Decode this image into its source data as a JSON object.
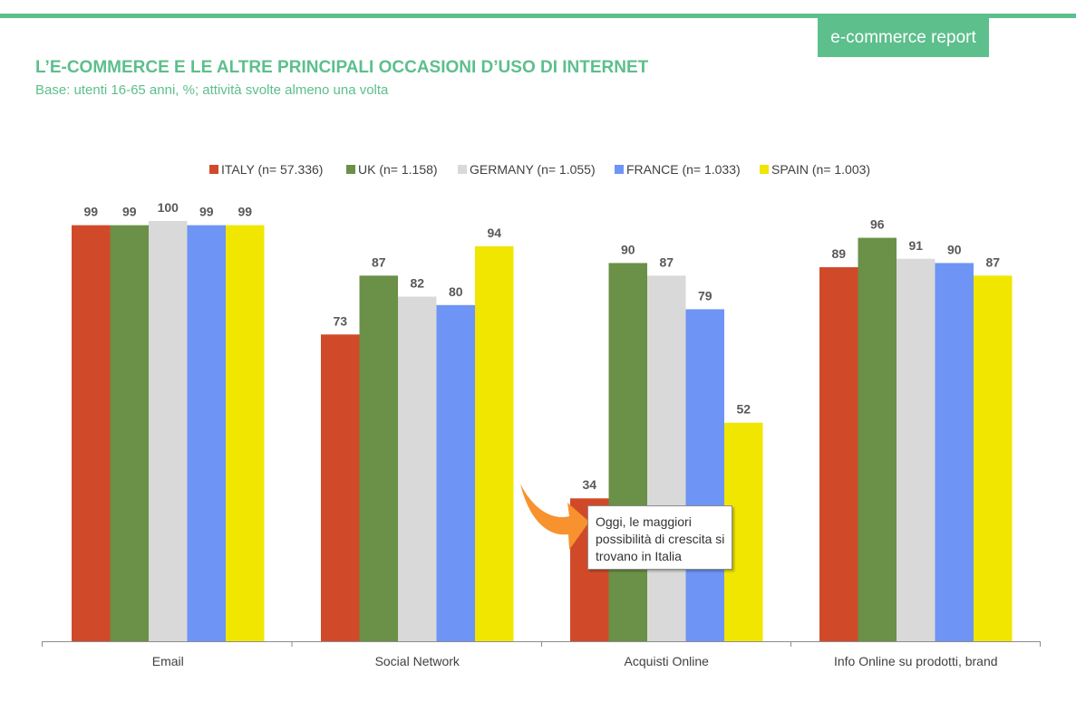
{
  "header": {
    "badge": "e-commerce report",
    "title": "L’E-COMMERCE E LE ALTRE PRINCIPALI OCCASIONI D’USO DI INTERNET",
    "subtitle": "Base: utenti 16-65 anni, %; attività svolte almeno una volta"
  },
  "colors": {
    "brand": "#5cbf8c",
    "arrow": "#f7922e"
  },
  "callout": {
    "text": "Oggi, le maggiori possibilità di crescita si trovano in Italia",
    "arrow_icon": "curved-arrow-icon"
  },
  "chart_data": {
    "type": "bar",
    "categories": [
      "Email",
      "Social Network",
      "Acquisti Online",
      "Info Online su prodotti, brand"
    ],
    "series": [
      {
        "name": "ITALY (n= 57.336)",
        "color": "#d04a2a",
        "values": [
          99,
          73,
          34,
          89
        ]
      },
      {
        "name": "UK (n= 1.158)",
        "color": "#6a9147",
        "values": [
          99,
          87,
          90,
          96
        ]
      },
      {
        "name": "GERMANY (n= 1.055)",
        "color": "#d9d9d9",
        "values": [
          100,
          82,
          87,
          91
        ]
      },
      {
        "name": "FRANCE (n= 1.033)",
        "color": "#6e94f5",
        "values": [
          99,
          80,
          79,
          90
        ]
      },
      {
        "name": "SPAIN (n= 1.003)",
        "color": "#f0e600",
        "values": [
          99,
          94,
          52,
          87
        ]
      }
    ],
    "ylim": [
      0,
      100
    ],
    "grid": false,
    "legend": "top-center",
    "data_labels": true
  }
}
